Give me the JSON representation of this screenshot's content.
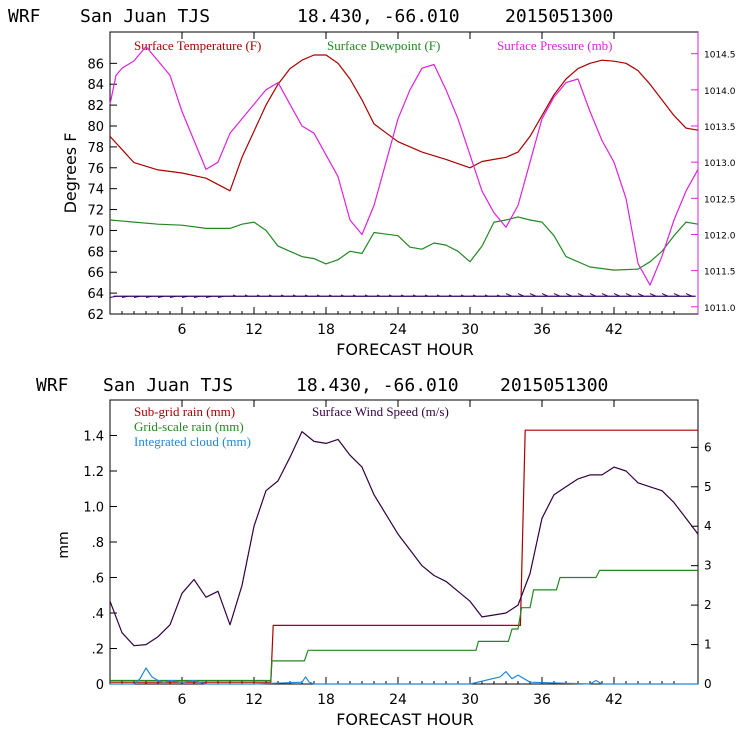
{
  "chart_data": [
    {
      "type": "line",
      "header": {
        "model": "WRF",
        "station": "San Juan TJS",
        "coords": "18.430, -66.010",
        "init": "2015051300"
      },
      "xlabel": "FORECAST HOUR",
      "ylabel": "Degrees F",
      "xlim": [
        0,
        49
      ],
      "ylim": [
        62,
        89
      ],
      "y2lim": [
        1010.9,
        1014.8
      ],
      "x_ticks": [
        "6",
        "12",
        "18",
        "24",
        "30",
        "36",
        "42"
      ],
      "x_tick_values": [
        6,
        12,
        18,
        24,
        30,
        36,
        42
      ],
      "y_ticks": [
        "62",
        "64",
        "66",
        "68",
        "70",
        "72",
        "74",
        "76",
        "78",
        "80",
        "82",
        "84",
        "86"
      ],
      "y_tick_values": [
        62,
        64,
        66,
        68,
        70,
        72,
        74,
        76,
        78,
        80,
        82,
        84,
        86
      ],
      "y2_ticks": [
        "1011.0",
        "1011.5",
        "1012.0",
        "1012.5",
        "1013.0",
        "1013.5",
        "1014.0",
        "1014.5"
      ],
      "y2_tick_values": [
        1011.0,
        1011.5,
        1012.0,
        1012.5,
        1013.0,
        1013.5,
        1014.0,
        1014.5
      ],
      "series": [
        {
          "name": "Surface Temperature (F)",
          "color": "#aa0000",
          "axis": "left",
          "x": [
            0,
            2,
            4,
            6,
            8,
            10,
            11,
            12,
            13,
            14,
            15,
            16,
            17,
            18,
            19,
            20,
            21,
            22,
            24,
            26,
            28,
            30,
            31,
            32,
            33,
            34,
            35,
            36,
            37,
            38,
            39,
            40,
            41,
            42,
            43,
            44,
            45,
            46,
            47,
            48,
            49
          ],
          "y": [
            79.0,
            76.5,
            75.8,
            75.5,
            75.0,
            73.8,
            77.0,
            79.5,
            82.0,
            84.0,
            85.5,
            86.3,
            86.8,
            86.8,
            86.0,
            84.5,
            82.5,
            80.2,
            78.5,
            77.5,
            76.8,
            76.0,
            76.6,
            76.8,
            77.0,
            77.5,
            79.0,
            81.0,
            83.0,
            84.5,
            85.5,
            86.0,
            86.3,
            86.2,
            86.0,
            85.3,
            84.0,
            82.5,
            81.0,
            79.8,
            79.6
          ]
        },
        {
          "name": "Surface Dewpoint (F)",
          "color": "#228822",
          "axis": "left",
          "x": [
            0,
            4,
            6,
            8,
            10,
            11,
            12,
            13,
            14,
            15,
            16,
            17,
            18,
            19,
            20,
            21,
            22,
            24,
            25,
            26,
            27,
            28,
            29,
            30,
            31,
            32,
            33,
            34,
            35,
            36,
            37,
            38,
            40,
            42,
            44,
            45,
            46,
            47,
            48,
            49
          ],
          "y": [
            71.0,
            70.6,
            70.5,
            70.2,
            70.2,
            70.6,
            70.8,
            70.0,
            68.5,
            68.0,
            67.5,
            67.3,
            66.8,
            67.2,
            68.0,
            67.8,
            69.8,
            69.5,
            68.4,
            68.2,
            68.8,
            68.6,
            68.0,
            67.0,
            68.5,
            70.8,
            71.0,
            71.3,
            71.0,
            70.8,
            69.5,
            67.5,
            66.5,
            66.2,
            66.3,
            67.0,
            68.0,
            69.5,
            70.8,
            70.6
          ]
        },
        {
          "name": "Surface Pressure (mb)",
          "color": "#dd22dd",
          "axis": "right",
          "x": [
            0,
            0.5,
            1,
            2,
            3,
            4,
            5,
            6,
            7,
            8,
            9,
            10,
            11,
            12,
            13,
            14,
            15,
            16,
            17,
            18,
            19,
            20,
            21,
            22,
            23,
            24,
            25,
            26,
            27,
            28,
            29,
            30,
            31,
            32,
            33,
            34,
            35,
            36,
            37,
            38,
            39,
            40,
            41,
            42,
            43,
            44,
            45,
            46,
            47,
            48,
            49
          ],
          "y": [
            1013.8,
            1014.2,
            1014.3,
            1014.4,
            1014.6,
            1014.4,
            1014.2,
            1013.7,
            1013.3,
            1012.9,
            1013.0,
            1013.4,
            1013.6,
            1013.8,
            1014.0,
            1014.1,
            1013.8,
            1013.5,
            1013.4,
            1013.1,
            1012.8,
            1012.2,
            1012.0,
            1012.4,
            1013.0,
            1013.6,
            1014.0,
            1014.3,
            1014.35,
            1014.0,
            1013.6,
            1013.1,
            1012.6,
            1012.3,
            1012.1,
            1012.4,
            1013.0,
            1013.6,
            1013.9,
            1014.1,
            1014.15,
            1013.7,
            1013.3,
            1013.0,
            1012.5,
            1011.6,
            1011.3,
            1011.7,
            1012.2,
            1012.6,
            1012.9
          ]
        }
      ],
      "wind_barbs": {
        "color": "#330066",
        "y": 63.7
      }
    },
    {
      "type": "line",
      "header": {
        "model": "WRF",
        "station": "San Juan TJS",
        "coords": "18.430, -66.010",
        "init": "2015051300"
      },
      "xlabel": "FORECAST HOUR",
      "ylabel": "mm",
      "xlim": [
        0,
        49
      ],
      "ylim": [
        0,
        1.6
      ],
      "y2lim": [
        0,
        7.2
      ],
      "x_ticks": [
        "6",
        "12",
        "18",
        "24",
        "30",
        "36",
        "42"
      ],
      "x_tick_values": [
        6,
        12,
        18,
        24,
        30,
        36,
        42
      ],
      "y_ticks": [
        "0",
        ".2",
        ".4",
        ".6",
        ".8",
        "1.0",
        "1.2",
        "1.4"
      ],
      "y_tick_values": [
        0,
        0.2,
        0.4,
        0.6,
        0.8,
        1.0,
        1.2,
        1.4
      ],
      "y2_ticks": [
        "0",
        "1",
        "2",
        "3",
        "4",
        "5",
        "6"
      ],
      "y2_tick_values": [
        0,
        1,
        2,
        3,
        4,
        5,
        6
      ],
      "series": [
        {
          "name": "Sub-grid rain (mm)",
          "color": "#aa0000",
          "axis": "left",
          "step": true,
          "x": [
            0,
            13.4,
            13.6,
            34.2,
            34.6,
            49
          ],
          "y": [
            0.01,
            0.01,
            0.33,
            0.33,
            1.43,
            1.43
          ]
        },
        {
          "name": "Grid-scale rain (mm)",
          "color": "#228822",
          "axis": "left",
          "step": true,
          "x": [
            0,
            13.4,
            13.5,
            16.2,
            16.5,
            30.5,
            30.7,
            33.2,
            33.5,
            34.0,
            34.3,
            35.0,
            35.3,
            37.2,
            37.5,
            40.5,
            40.8,
            49
          ],
          "y": [
            0.02,
            0.02,
            0.13,
            0.13,
            0.19,
            0.19,
            0.24,
            0.24,
            0.31,
            0.31,
            0.43,
            0.43,
            0.53,
            0.53,
            0.6,
            0.6,
            0.64,
            0.64
          ]
        },
        {
          "name": "Integrated cloud (mm)",
          "color": "#2288dd",
          "axis": "left",
          "x": [
            0,
            2,
            2.5,
            3.0,
            3.5,
            4.0,
            4.5,
            5,
            6,
            7,
            8,
            12,
            16,
            16.3,
            16.6,
            17,
            20,
            30,
            32.5,
            33,
            33.5,
            34,
            35,
            40,
            40.5,
            41,
            49
          ],
          "y": [
            0.0,
            0.0,
            0.03,
            0.09,
            0.04,
            0.02,
            0.01,
            0.02,
            0.01,
            0.02,
            0.0,
            0.0,
            0.01,
            0.04,
            0.01,
            0.0,
            0.0,
            0.0,
            0.04,
            0.07,
            0.03,
            0.05,
            0.01,
            0.0,
            0.02,
            0.0,
            0.0
          ]
        },
        {
          "name": "Surface Wind Speed (m/s)",
          "color": "#330044",
          "axis": "right",
          "x": [
            0,
            1,
            2,
            3,
            4,
            5,
            6,
            7,
            8,
            9,
            10,
            11,
            12,
            13,
            14,
            15,
            16,
            17,
            18,
            19,
            20,
            21,
            22,
            23,
            24,
            25,
            26,
            27,
            28,
            29,
            30,
            31,
            32,
            33,
            34,
            35,
            36,
            37,
            38,
            39,
            40,
            41,
            42,
            43,
            44,
            45,
            46,
            47,
            48,
            49
          ],
          "y": [
            2.1,
            1.3,
            0.97,
            1.0,
            1.2,
            1.5,
            2.3,
            2.65,
            2.2,
            2.35,
            1.5,
            2.5,
            4.0,
            4.9,
            5.15,
            5.75,
            6.4,
            6.15,
            6.1,
            6.2,
            5.8,
            5.5,
            4.8,
            4.3,
            3.8,
            3.4,
            3.0,
            2.75,
            2.6,
            2.35,
            2.1,
            1.7,
            1.75,
            1.8,
            2.0,
            2.8,
            4.2,
            4.8,
            5.0,
            5.2,
            5.3,
            5.3,
            5.5,
            5.4,
            5.1,
            5.0,
            4.9,
            4.6,
            4.2,
            3.8
          ]
        }
      ]
    }
  ]
}
